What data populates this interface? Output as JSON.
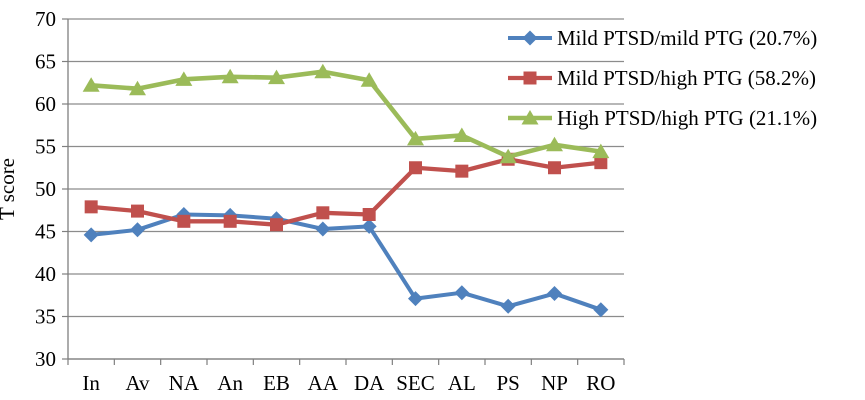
{
  "chart_data": {
    "type": "line",
    "title": "",
    "xlabel": "",
    "ylabel": "T score",
    "categories": [
      "In",
      "Av",
      "NA",
      "An",
      "EB",
      "AA",
      "DA",
      "SEC",
      "AL",
      "PS",
      "NP",
      "RO"
    ],
    "series": [
      {
        "name": "Mild PTSD/mild PTG (20.7%)",
        "color": "#4F81BD",
        "marker": "diamond",
        "values": [
          44.6,
          45.2,
          47.0,
          46.9,
          46.5,
          45.3,
          45.6,
          37.1,
          37.8,
          36.2,
          37.7,
          35.8
        ]
      },
      {
        "name": "Mild PTSD/high PTG (58.2%)",
        "color": "#C0504D",
        "marker": "square",
        "values": [
          47.9,
          47.4,
          46.2,
          46.2,
          45.8,
          47.2,
          47.0,
          52.5,
          52.1,
          53.5,
          52.5,
          53.1
        ]
      },
      {
        "name": "High PTSD/high PTG (21.1%)",
        "color": "#9BBB59",
        "marker": "triangle",
        "values": [
          62.2,
          61.8,
          62.9,
          63.2,
          63.1,
          63.8,
          62.8,
          55.9,
          56.3,
          53.8,
          55.2,
          54.4
        ]
      }
    ],
    "ylim": [
      30,
      70
    ],
    "ytick_step": 5,
    "yticks": [
      "30",
      "35",
      "40",
      "45",
      "50",
      "55",
      "60",
      "65",
      "70"
    ],
    "grid": true,
    "legend_position": "upper right inside, no border",
    "grid_color": "#8C8C8C",
    "axis_color": "#7F7F7F",
    "text_color": "#000000"
  }
}
